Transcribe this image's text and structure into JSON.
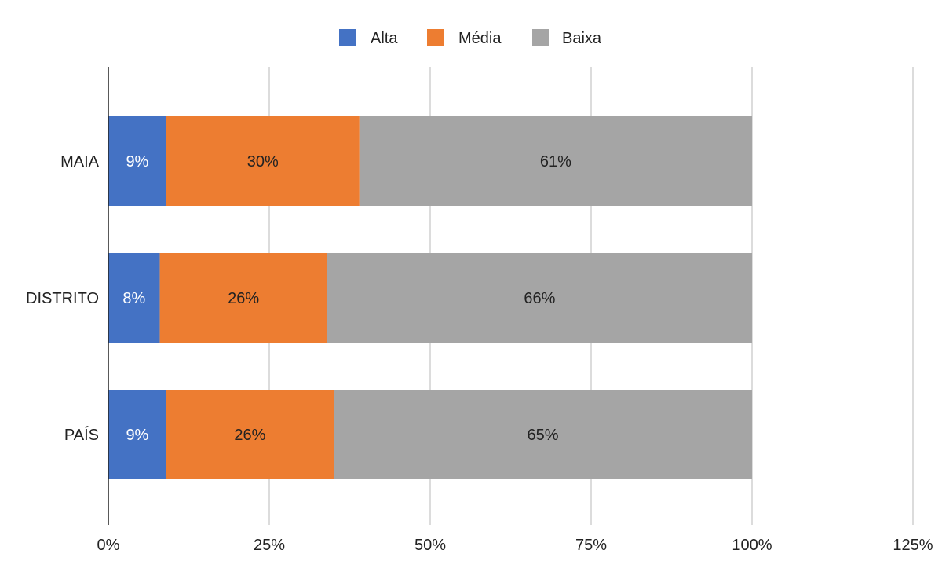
{
  "chart_data": {
    "type": "bar",
    "orientation": "horizontal",
    "stacked": true,
    "categories": [
      "MAIA",
      "DISTRITO",
      "PAÍS"
    ],
    "series": [
      {
        "name": "Alta",
        "color": "#4472C4",
        "values": [
          9,
          8,
          9
        ],
        "labels": [
          "9%",
          "8%",
          "9%"
        ],
        "label_color": "#ffffff"
      },
      {
        "name": "Média",
        "color": "#ED7D31",
        "values": [
          30,
          26,
          26
        ],
        "labels": [
          "30%",
          "26%",
          "26%"
        ],
        "label_color": "#222222"
      },
      {
        "name": "Baixa",
        "color": "#A5A5A5",
        "values": [
          61,
          66,
          65
        ],
        "labels": [
          "61%",
          "66%",
          "65%"
        ],
        "label_color": "#222222"
      }
    ],
    "xlim": [
      0,
      125
    ],
    "xticks": [
      0,
      25,
      50,
      75,
      100,
      125
    ],
    "xtick_labels": [
      "0%",
      "25%",
      "50%",
      "75%",
      "100%",
      "125%"
    ],
    "grid": true,
    "legend_position": "top-center",
    "title": "",
    "xlabel": "",
    "ylabel": ""
  }
}
